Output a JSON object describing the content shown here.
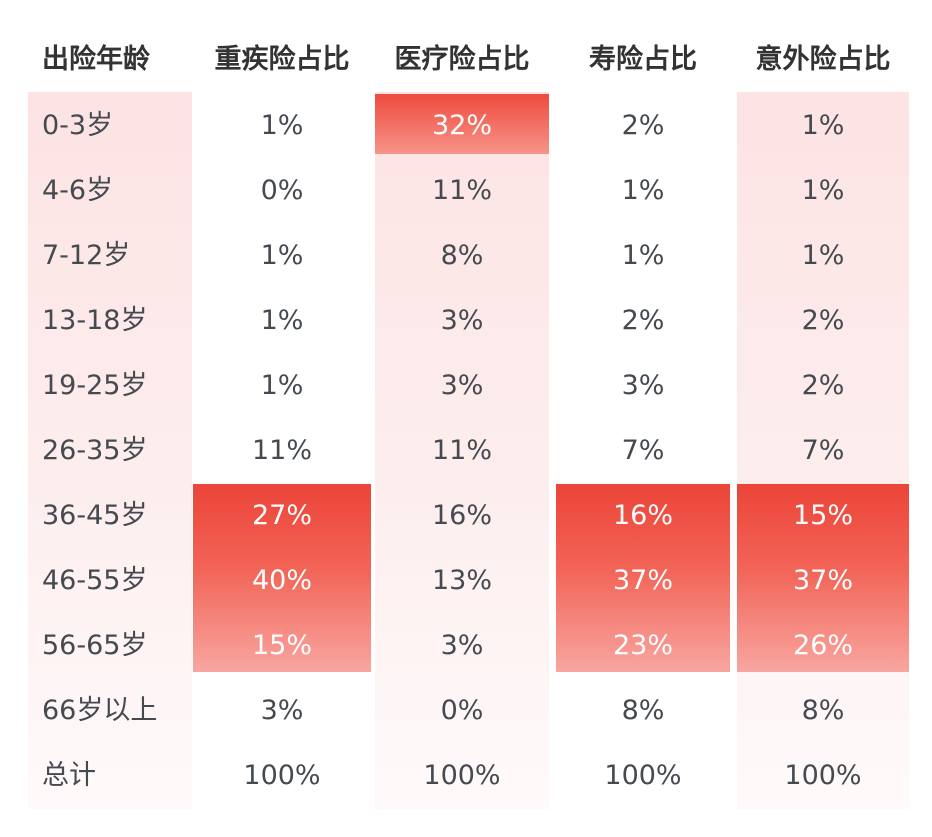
{
  "headers": [
    "出险年龄",
    "重疾险占比",
    "医疗险占比",
    "寿险占比",
    "意外险占比"
  ],
  "rows": [
    {
      "age": "0-3岁",
      "values": [
        "1%",
        "32%",
        "2%",
        "1%"
      ]
    },
    {
      "age": "4-6岁",
      "values": [
        "0%",
        "11%",
        "1%",
        "1%"
      ]
    },
    {
      "age": "7-12岁",
      "values": [
        "1%",
        "8%",
        "1%",
        "1%"
      ]
    },
    {
      "age": "13-18岁",
      "values": [
        "1%",
        "3%",
        "2%",
        "2%"
      ]
    },
    {
      "age": "19-25岁",
      "values": [
        "1%",
        "3%",
        "3%",
        "2%"
      ]
    },
    {
      "age": "26-35岁",
      "values": [
        "11%",
        "11%",
        "7%",
        "7%"
      ]
    },
    {
      "age": "36-45岁",
      "values": [
        "27%",
        "16%",
        "16%",
        "15%"
      ]
    },
    {
      "age": "46-55岁",
      "values": [
        "40%",
        "13%",
        "37%",
        "37%"
      ]
    },
    {
      "age": "56-65岁",
      "values": [
        "15%",
        "3%",
        "23%",
        "26%"
      ]
    },
    {
      "age": "66岁以上",
      "values": [
        "3%",
        "0%",
        "8%",
        "8%"
      ]
    },
    {
      "age": "总计",
      "values": [
        "100%",
        "100%",
        "100%",
        "100%"
      ]
    }
  ],
  "highlight_color": "#ec4438",
  "band_color": "#fde3e3"
}
